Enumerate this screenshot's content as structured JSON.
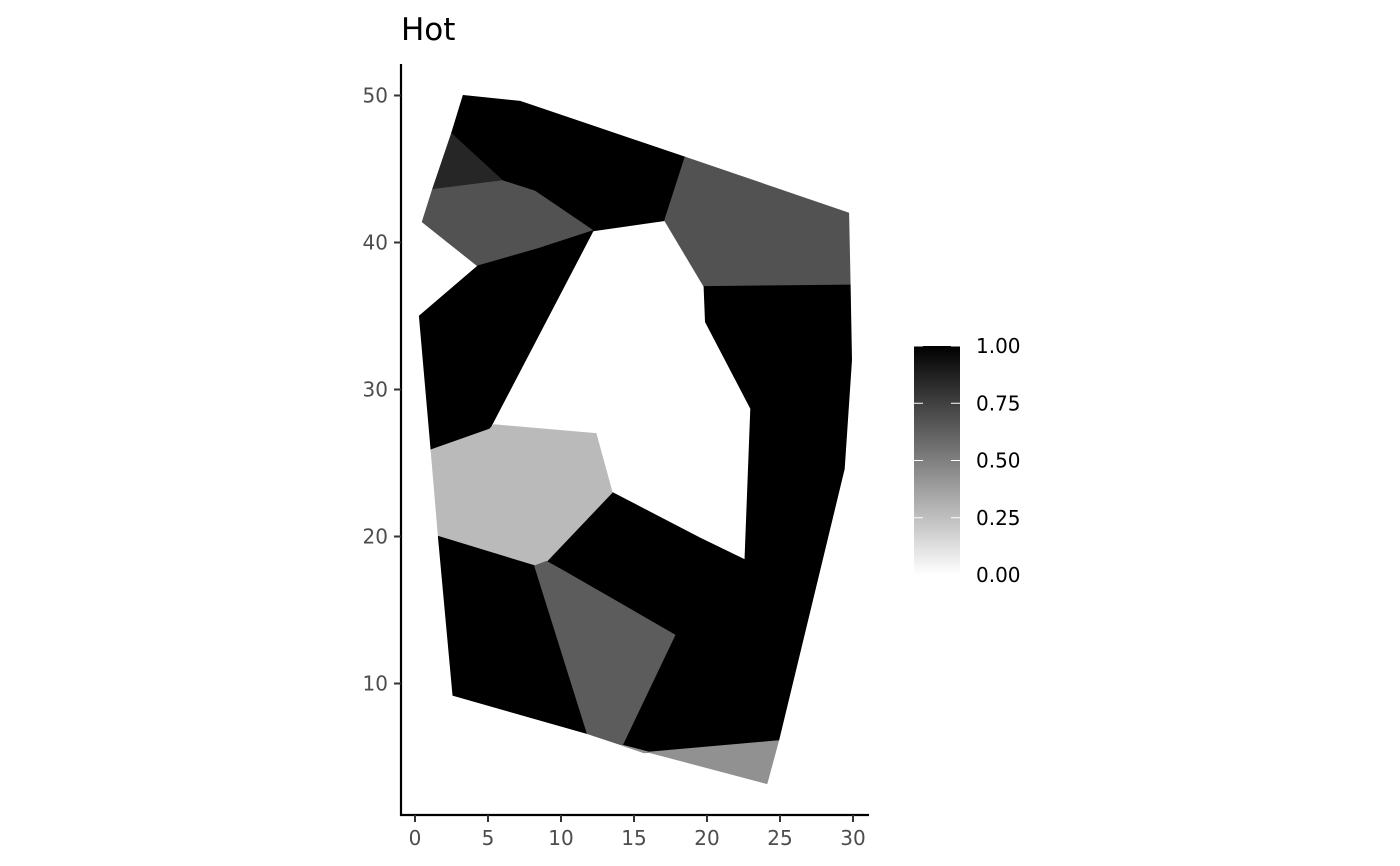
{
  "chart_data": {
    "type": "choropleth-map",
    "title": "Hot",
    "xlabel": "",
    "ylabel": "",
    "xlim": [
      -0.8,
      31
    ],
    "ylim": [
      1,
      52
    ],
    "x_ticks": [
      0,
      5,
      10,
      15,
      20,
      25,
      30
    ],
    "y_ticks": [
      10,
      20,
      30,
      40,
      50
    ],
    "grid": false,
    "legend": {
      "placement": "right",
      "min": 0,
      "max": 1,
      "ticks": [
        "0.00",
        "0.25",
        "0.50",
        "0.75",
        "1.00"
      ],
      "gradient": [
        "#ffffff",
        "#000000"
      ]
    },
    "regions": [
      {
        "id": 1,
        "value": 1.0,
        "coords": [
          [
            3.3,
            50
          ],
          [
            7.2,
            49.6
          ],
          [
            18.5,
            45.8
          ],
          [
            17.1,
            41.5
          ],
          [
            12.2,
            40.8
          ],
          [
            8.2,
            43.5
          ],
          [
            6.0,
            44.2
          ],
          [
            2.5,
            47.4
          ]
        ]
      },
      {
        "id": 2,
        "value": 0.85,
        "coords": [
          [
            2.5,
            47.4
          ],
          [
            6.0,
            44.2
          ],
          [
            1.2,
            43.6
          ]
        ]
      },
      {
        "id": 3,
        "value": 0.68,
        "coords": [
          [
            1.2,
            43.6
          ],
          [
            6.0,
            44.2
          ],
          [
            8.2,
            43.5
          ],
          [
            12.2,
            40.8
          ],
          [
            8.5,
            39.6
          ],
          [
            4.3,
            38.4
          ],
          [
            0.5,
            41.4
          ]
        ]
      },
      {
        "id": 4,
        "value": 0.68,
        "coords": [
          [
            18.5,
            45.8
          ],
          [
            29.7,
            42.0
          ],
          [
            29.8,
            37.1
          ],
          [
            19.8,
            37.0
          ],
          [
            17.1,
            41.5
          ]
        ]
      },
      {
        "id": 5,
        "value": 1.0,
        "coords": [
          [
            4.3,
            38.4
          ],
          [
            8.5,
            39.6
          ],
          [
            12.2,
            40.8
          ],
          [
            5.1,
            27.3
          ],
          [
            1.1,
            25.9
          ],
          [
            0.3,
            35.0
          ]
        ]
      },
      {
        "id": 6,
        "value": 1.0,
        "coords": [
          [
            19.8,
            37.0
          ],
          [
            29.8,
            37.1
          ],
          [
            29.9,
            32.0
          ],
          [
            29.4,
            24.6
          ],
          [
            24.9,
            6.1
          ],
          [
            15.7,
            5.3
          ],
          [
            14.2,
            5.8
          ],
          [
            17.8,
            13.3
          ],
          [
            10.1,
            17.7
          ],
          [
            9.0,
            18.3
          ],
          [
            13.5,
            23.0
          ],
          [
            19.5,
            19.9
          ],
          [
            22.6,
            18.4
          ],
          [
            23.0,
            28.7
          ],
          [
            19.9,
            34.6
          ]
        ]
      },
      {
        "id": 7,
        "value": 0.27,
        "coords": [
          [
            1.1,
            25.9
          ],
          [
            5.1,
            27.3
          ],
          [
            5.4,
            27.6
          ],
          [
            12.4,
            27.0
          ],
          [
            13.5,
            23.0
          ],
          [
            9.0,
            18.3
          ],
          [
            8.2,
            18.0
          ],
          [
            1.6,
            20.0
          ]
        ]
      },
      {
        "id": 8,
        "value": 1.0,
        "coords": [
          [
            1.6,
            20.0
          ],
          [
            8.2,
            18.0
          ],
          [
            11.8,
            6.6
          ],
          [
            2.6,
            9.2
          ]
        ]
      },
      {
        "id": 9,
        "value": 0.64,
        "coords": [
          [
            8.2,
            18.0
          ],
          [
            9.0,
            18.3
          ],
          [
            10.1,
            17.7
          ],
          [
            17.8,
            13.3
          ],
          [
            14.2,
            5.8
          ],
          [
            11.8,
            6.6
          ]
        ]
      },
      {
        "id": 10,
        "value": 0.43,
        "coords": [
          [
            14.2,
            5.8
          ],
          [
            15.7,
            5.3
          ],
          [
            24.9,
            6.1
          ],
          [
            24.1,
            3.2
          ]
        ]
      }
    ]
  }
}
